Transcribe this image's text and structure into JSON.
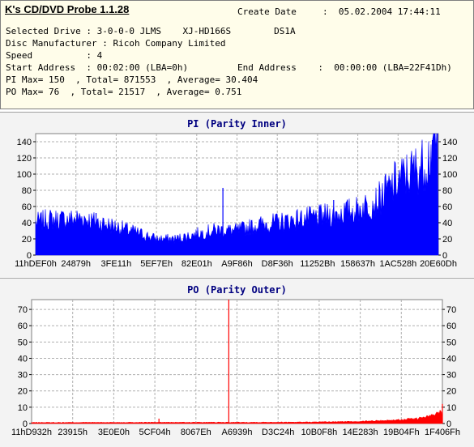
{
  "app": {
    "title": "K's CD/DVD Probe 1.1.28"
  },
  "info": {
    "create_date_label": "Create Date",
    "create_date_value": ":  05.02.2004 17:44:11",
    "selected_drive": "Selected Drive : 3-0-0-0 JLMS    XJ-HD166S        DS1A",
    "disc_manufacturer": "Disc Manufacturer : Ricoh Company Limited",
    "speed": "Speed          : 4",
    "start_address": "Start Address  : 00:02:00 (LBA=0h)",
    "end_address": "End Address    :  00:00:00 (LBA=22F41Dh)",
    "pi_stats": "PI Max= 150  , Total= 871553  , Average= 30.404",
    "po_stats": "PO Max= 76  , Total= 21517  , Average= 0.751"
  },
  "colors": {
    "pi": "#0000ff",
    "po": "#ff0000",
    "grid": "#b0b0b0",
    "plot_bg": "#ffffff",
    "header_bg": "#fffdea",
    "panel_bg": "#f3f3f3",
    "title": "#000080"
  },
  "chart_data": [
    {
      "type": "area",
      "title": "PI (Parity Inner)",
      "grid": true,
      "ylim": [
        0,
        150
      ],
      "yticks": [
        0,
        20,
        40,
        60,
        80,
        100,
        120,
        140
      ],
      "x_tick_labels": [
        "11hDEF0h",
        "24879h",
        "3FE11h",
        "5EF7Eh",
        "82E01h",
        "A9F86h",
        "D8F36h",
        "11252Bh",
        "158637h",
        "1AC528h",
        "20E60Dh"
      ],
      "profile_x": [
        0,
        0.03,
        0.08,
        0.12,
        0.14,
        0.16,
        0.2,
        0.25,
        0.3,
        0.35,
        0.4,
        0.45,
        0.5,
        0.55,
        0.6,
        0.65,
        0.7,
        0.75,
        0.8,
        0.85,
        0.9,
        0.94,
        0.97,
        0.99,
        1.0
      ],
      "profile_y": [
        40,
        44,
        44,
        46,
        42,
        40,
        35,
        28,
        20,
        20,
        26,
        31,
        30,
        37,
        40,
        44,
        47,
        51,
        56,
        67,
        92,
        104,
        114,
        135,
        148
      ],
      "spikes": [
        {
          "x": 0.465,
          "y": 83
        },
        {
          "x": 0.15,
          "y": 52
        },
        {
          "x": 0.74,
          "y": 68
        },
        {
          "x": 0.985,
          "y": 142
        },
        {
          "x": 0.997,
          "y": 150
        }
      ]
    },
    {
      "type": "area",
      "title": "PO (Parity Outer)",
      "grid": true,
      "ylim": [
        0,
        76
      ],
      "yticks": [
        0,
        10,
        20,
        30,
        40,
        50,
        60,
        70
      ],
      "x_tick_labels": [
        "11hD932h",
        "23915h",
        "3E0E0h",
        "5CF04h",
        "8067Eh",
        "A6939h",
        "D3C24h",
        "10B0F8h",
        "14E283h",
        "19B04Fh",
        "1F406Fh"
      ],
      "profile_x": [
        0,
        0.3,
        0.5,
        0.7,
        0.8,
        0.88,
        0.94,
        0.98,
        1.0
      ],
      "profile_y": [
        0.6,
        0.7,
        0.7,
        0.9,
        1.3,
        2,
        3,
        5,
        8
      ],
      "spikes": [
        {
          "x": 0.48,
          "y": 76
        },
        {
          "x": 0.31,
          "y": 3
        },
        {
          "x": 1.0,
          "y": 12
        }
      ]
    }
  ]
}
